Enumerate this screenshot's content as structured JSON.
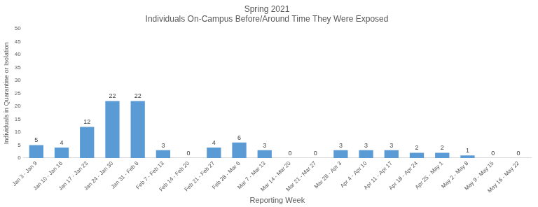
{
  "chart_data": {
    "type": "bar",
    "title": [
      "Spring 2021",
      "Individuals On-Campus Before/Around Time They Were Exposed"
    ],
    "x_label": "Reporting Week",
    "y_label": "Individuals in Quarantine or Isolation",
    "categories": [
      "Jan 3 - Jan 9",
      "Jan 10 - Jan 16",
      "Jan 17 - Jan 23",
      "Jan 24 - Jan 30",
      "Jan 31 - Feb 6",
      "Feb 7 - Feb 13",
      "Feb 14 - Feb 20",
      "Feb 21 - Feb 27",
      "Feb 28 - Mar 6",
      "Mar 7 - Mar 13",
      "Mar 14 - Mar 20",
      "Mar 21 - Mar 27",
      "Mar 28 - Apr 3",
      "Apr 4 - Apr 10",
      "Apr 11 - Apr 17",
      "Apr 18 - Apr 24",
      "Apr 25 - May 1",
      "May 2 - May 8",
      "May 9 - May 15",
      "May 16 - May 22"
    ],
    "values": [
      5,
      4,
      12,
      22,
      22,
      3,
      0,
      4,
      6,
      3,
      0,
      0,
      3,
      3,
      3,
      2,
      2,
      1,
      0,
      0
    ],
    "color": "#5b9bd5",
    "ylim": [
      0,
      50
    ],
    "yticks": [
      0,
      5,
      10,
      15,
      20,
      25,
      30,
      35,
      40,
      45,
      50
    ],
    "grid": false,
    "data_labels": true
  }
}
